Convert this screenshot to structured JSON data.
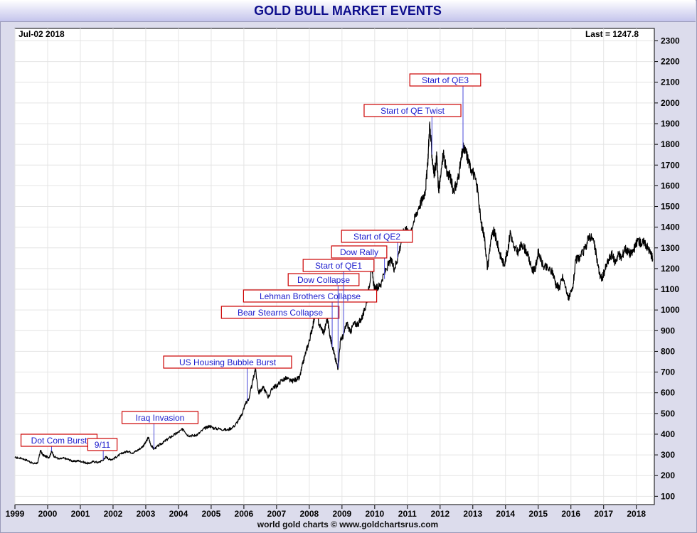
{
  "header": {
    "title": "GOLD BULL MARKET EVENTS"
  },
  "info": {
    "date": "Jul-02  2018",
    "last": "Last = 1247.8"
  },
  "footer": {
    "credit": "world gold charts © www.goldchartsrus.com"
  },
  "colors": {
    "line": "#000000",
    "annotation_text": "#1a1acc",
    "annotation_border": "#cc0000",
    "title": "#0d0d8c"
  },
  "chart_data": {
    "type": "line",
    "title": "GOLD BULL MARKET EVENTS",
    "xlabel": "",
    "ylabel": "",
    "xlim": [
      1999.0,
      2018.55
    ],
    "ylim": [
      60,
      2360
    ],
    "grid": true,
    "x_ticks": [
      "1999",
      "2000",
      "2001",
      "2002",
      "2003",
      "2004",
      "2005",
      "2006",
      "2007",
      "2008",
      "2009",
      "2010",
      "2011",
      "2012",
      "2013",
      "2014",
      "2015",
      "2016",
      "2017",
      "2018"
    ],
    "y_ticks": [
      100,
      200,
      300,
      400,
      500,
      600,
      700,
      800,
      900,
      1000,
      1100,
      1200,
      1300,
      1400,
      1500,
      1600,
      1700,
      1800,
      1900,
      2000,
      2100,
      2200,
      2300
    ],
    "series": [
      {
        "points": [
          [
            1999.0,
            287
          ],
          [
            1999.2,
            284
          ],
          [
            1999.4,
            272
          ],
          [
            1999.55,
            258
          ],
          [
            1999.7,
            262
          ],
          [
            1999.78,
            322
          ],
          [
            1999.85,
            300
          ],
          [
            1999.95,
            292
          ],
          [
            2000.05,
            288
          ],
          [
            2000.12,
            318
          ],
          [
            2000.2,
            292
          ],
          [
            2000.35,
            280
          ],
          [
            2000.5,
            284
          ],
          [
            2000.65,
            277
          ],
          [
            2000.8,
            268
          ],
          [
            2000.95,
            272
          ],
          [
            2001.1,
            265
          ],
          [
            2001.25,
            258
          ],
          [
            2001.4,
            268
          ],
          [
            2001.55,
            263
          ],
          [
            2001.7,
            276
          ],
          [
            2001.78,
            290
          ],
          [
            2001.9,
            278
          ],
          [
            2002.0,
            280
          ],
          [
            2002.15,
            295
          ],
          [
            2002.3,
            310
          ],
          [
            2002.45,
            318
          ],
          [
            2002.6,
            310
          ],
          [
            2002.75,
            322
          ],
          [
            2002.9,
            340
          ],
          [
            2003.0,
            360
          ],
          [
            2003.08,
            385
          ],
          [
            2003.15,
            350
          ],
          [
            2003.25,
            328
          ],
          [
            2003.4,
            346
          ],
          [
            2003.55,
            362
          ],
          [
            2003.7,
            380
          ],
          [
            2003.85,
            395
          ],
          [
            2004.0,
            410
          ],
          [
            2004.15,
            425
          ],
          [
            2004.28,
            395
          ],
          [
            2004.45,
            392
          ],
          [
            2004.6,
            400
          ],
          [
            2004.8,
            428
          ],
          [
            2004.95,
            440
          ],
          [
            2005.1,
            428
          ],
          [
            2005.3,
            425
          ],
          [
            2005.5,
            420
          ],
          [
            2005.7,
            438
          ],
          [
            2005.85,
            470
          ],
          [
            2005.95,
            500
          ],
          [
            2006.05,
            550
          ],
          [
            2006.15,
            570
          ],
          [
            2006.25,
            640
          ],
          [
            2006.35,
            718
          ],
          [
            2006.45,
            600
          ],
          [
            2006.6,
            625
          ],
          [
            2006.75,
            580
          ],
          [
            2006.9,
            630
          ],
          [
            2007.0,
            632
          ],
          [
            2007.15,
            660
          ],
          [
            2007.3,
            670
          ],
          [
            2007.45,
            655
          ],
          [
            2007.6,
            665
          ],
          [
            2007.7,
            670
          ],
          [
            2007.8,
            740
          ],
          [
            2007.9,
            800
          ],
          [
            2008.0,
            850
          ],
          [
            2008.1,
            920
          ],
          [
            2008.2,
            1000
          ],
          [
            2008.3,
            930
          ],
          [
            2008.45,
            890
          ],
          [
            2008.55,
            960
          ],
          [
            2008.65,
            860
          ],
          [
            2008.72,
            820
          ],
          [
            2008.8,
            760
          ],
          [
            2008.88,
            720
          ],
          [
            2008.95,
            850
          ],
          [
            2009.05,
            880
          ],
          [
            2009.15,
            940
          ],
          [
            2009.25,
            890
          ],
          [
            2009.35,
            930
          ],
          [
            2009.5,
            935
          ],
          [
            2009.6,
            960
          ],
          [
            2009.7,
            1000
          ],
          [
            2009.8,
            1080
          ],
          [
            2009.9,
            1200
          ],
          [
            2010.0,
            1100
          ],
          [
            2010.1,
            1110
          ],
          [
            2010.2,
            1130
          ],
          [
            2010.35,
            1200
          ],
          [
            2010.5,
            1240
          ],
          [
            2010.6,
            1200
          ],
          [
            2010.7,
            1250
          ],
          [
            2010.85,
            1360
          ],
          [
            2010.95,
            1400
          ],
          [
            2011.05,
            1360
          ],
          [
            2011.2,
            1430
          ],
          [
            2011.35,
            1500
          ],
          [
            2011.45,
            1530
          ],
          [
            2011.55,
            1580
          ],
          [
            2011.62,
            1700
          ],
          [
            2011.68,
            1900
          ],
          [
            2011.75,
            1750
          ],
          [
            2011.82,
            1650
          ],
          [
            2011.9,
            1740
          ],
          [
            2011.95,
            1580
          ],
          [
            2012.0,
            1620
          ],
          [
            2012.1,
            1760
          ],
          [
            2012.2,
            1660
          ],
          [
            2012.3,
            1650
          ],
          [
            2012.4,
            1580
          ],
          [
            2012.5,
            1600
          ],
          [
            2012.6,
            1680
          ],
          [
            2012.7,
            1780
          ],
          [
            2012.8,
            1760
          ],
          [
            2012.9,
            1700
          ],
          [
            2013.0,
            1670
          ],
          [
            2013.15,
            1580
          ],
          [
            2013.25,
            1420
          ],
          [
            2013.35,
            1360
          ],
          [
            2013.45,
            1200
          ],
          [
            2013.55,
            1340
          ],
          [
            2013.65,
            1380
          ],
          [
            2013.75,
            1320
          ],
          [
            2013.85,
            1260
          ],
          [
            2013.95,
            1220
          ],
          [
            2014.05,
            1270
          ],
          [
            2014.15,
            1380
          ],
          [
            2014.25,
            1300
          ],
          [
            2014.4,
            1280
          ],
          [
            2014.5,
            1320
          ],
          [
            2014.65,
            1280
          ],
          [
            2014.8,
            1200
          ],
          [
            2014.9,
            1190
          ],
          [
            2015.0,
            1280
          ],
          [
            2015.15,
            1210
          ],
          [
            2015.3,
            1200
          ],
          [
            2015.45,
            1180
          ],
          [
            2015.55,
            1120
          ],
          [
            2015.65,
            1110
          ],
          [
            2015.75,
            1160
          ],
          [
            2015.9,
            1070
          ],
          [
            2015.95,
            1060
          ],
          [
            2016.05,
            1100
          ],
          [
            2016.15,
            1240
          ],
          [
            2016.3,
            1260
          ],
          [
            2016.45,
            1300
          ],
          [
            2016.55,
            1360
          ],
          [
            2016.68,
            1340
          ],
          [
            2016.78,
            1260
          ],
          [
            2016.88,
            1170
          ],
          [
            2016.95,
            1150
          ],
          [
            2017.05,
            1200
          ],
          [
            2017.15,
            1240
          ],
          [
            2017.25,
            1270
          ],
          [
            2017.35,
            1230
          ],
          [
            2017.45,
            1270
          ],
          [
            2017.55,
            1250
          ],
          [
            2017.65,
            1300
          ],
          [
            2017.75,
            1280
          ],
          [
            2017.85,
            1270
          ],
          [
            2017.95,
            1300
          ],
          [
            2018.05,
            1340
          ],
          [
            2018.15,
            1320
          ],
          [
            2018.25,
            1330
          ],
          [
            2018.35,
            1300
          ],
          [
            2018.45,
            1270
          ],
          [
            2018.5,
            1248
          ]
        ]
      }
    ],
    "annotations": [
      {
        "label": "Dot Com Burst",
        "x": 2000.12,
        "y": 318
      },
      {
        "label": "9/11",
        "x": 2001.7,
        "y": 276
      },
      {
        "label": "Iraq Invasion",
        "x": 2003.25,
        "y": 328
      },
      {
        "label": "US Housing Bubble Burst",
        "x": 2006.1,
        "y": 560
      },
      {
        "label": "Bear Stearns Collapse",
        "x": 2008.2,
        "y": 1000
      },
      {
        "label": "Lehman Brothers Collapse",
        "x": 2008.7,
        "y": 820
      },
      {
        "label": "Dow Collapse",
        "x": 2008.88,
        "y": 720
      },
      {
        "label": "Start of QE1",
        "x": 2009.05,
        "y": 880
      },
      {
        "label": "Dow Rally",
        "x": 2010.3,
        "y": 1150
      },
      {
        "label": "Start of QE2",
        "x": 2010.7,
        "y": 1250
      },
      {
        "label": "Start of QE Twist",
        "x": 2011.75,
        "y": 1750
      },
      {
        "label": "Start of QE3",
        "x": 2012.7,
        "y": 1780
      }
    ]
  }
}
